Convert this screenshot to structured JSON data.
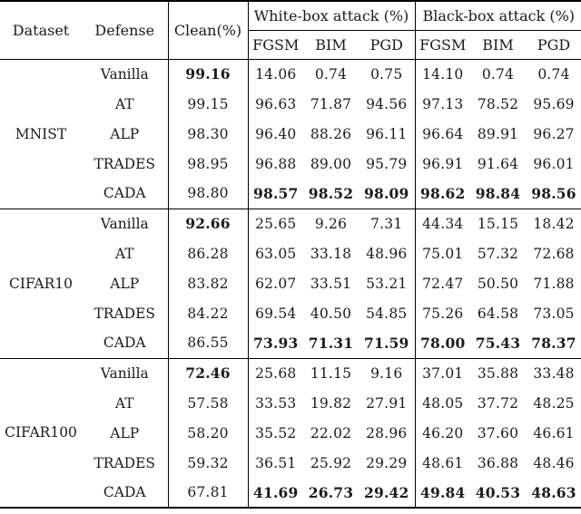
{
  "table": {
    "headers": {
      "dataset": "Dataset",
      "defense": "Defense",
      "clean": "Clean(%)",
      "whitebox": "White-box attack (%)",
      "blackbox": "Black-box attack (%)",
      "attack_cols": [
        "FGSM",
        "BIM",
        "PGD"
      ]
    },
    "groups": [
      {
        "dataset": "MNIST",
        "rows": [
          {
            "defense": "Vanilla",
            "clean": "99.16",
            "clean_bold": true,
            "attack_bold": false,
            "wb": [
              "14.06",
              "0.74",
              "0.75"
            ],
            "bb": [
              "14.10",
              "0.74",
              "0.74"
            ]
          },
          {
            "defense": "AT",
            "clean": "99.15",
            "clean_bold": false,
            "attack_bold": false,
            "wb": [
              "96.63",
              "71.87",
              "94.56"
            ],
            "bb": [
              "97.13",
              "78.52",
              "95.69"
            ]
          },
          {
            "defense": "ALP",
            "clean": "98.30",
            "clean_bold": false,
            "attack_bold": false,
            "wb": [
              "96.40",
              "88.26",
              "96.11"
            ],
            "bb": [
              "96.64",
              "89.91",
              "96.27"
            ]
          },
          {
            "defense": "TRADES",
            "clean": "98.95",
            "clean_bold": false,
            "attack_bold": false,
            "wb": [
              "96.88",
              "89.00",
              "95.79"
            ],
            "bb": [
              "96.91",
              "91.64",
              "96.01"
            ]
          },
          {
            "defense": "CADA",
            "clean": "98.80",
            "clean_bold": false,
            "attack_bold": true,
            "wb": [
              "98.57",
              "98.52",
              "98.09"
            ],
            "bb": [
              "98.62",
              "98.84",
              "98.56"
            ]
          }
        ]
      },
      {
        "dataset": "CIFAR10",
        "rows": [
          {
            "defense": "Vanilla",
            "clean": "92.66",
            "clean_bold": true,
            "attack_bold": false,
            "wb": [
              "25.65",
              "9.26",
              "7.31"
            ],
            "bb": [
              "44.34",
              "15.15",
              "18.42"
            ]
          },
          {
            "defense": "AT",
            "clean": "86.28",
            "clean_bold": false,
            "attack_bold": false,
            "wb": [
              "63.05",
              "33.18",
              "48.96"
            ],
            "bb": [
              "75.01",
              "57.32",
              "72.68"
            ]
          },
          {
            "defense": "ALP",
            "clean": "83.82",
            "clean_bold": false,
            "attack_bold": false,
            "wb": [
              "62.07",
              "33.51",
              "53.21"
            ],
            "bb": [
              "72.47",
              "50.50",
              "71.88"
            ]
          },
          {
            "defense": "TRADES",
            "clean": "84.22",
            "clean_bold": false,
            "attack_bold": false,
            "wb": [
              "69.54",
              "40.50",
              "54.85"
            ],
            "bb": [
              "75.26",
              "64.58",
              "73.05"
            ]
          },
          {
            "defense": "CADA",
            "clean": "86.55",
            "clean_bold": false,
            "attack_bold": true,
            "wb": [
              "73.93",
              "71.31",
              "71.59"
            ],
            "bb": [
              "78.00",
              "75.43",
              "78.37"
            ]
          }
        ]
      },
      {
        "dataset": "CIFAR100",
        "rows": [
          {
            "defense": "Vanilla",
            "clean": "72.46",
            "clean_bold": true,
            "attack_bold": false,
            "wb": [
              "25.68",
              "11.15",
              "9.16"
            ],
            "bb": [
              "37.01",
              "35.88",
              "33.48"
            ]
          },
          {
            "defense": "AT",
            "clean": "57.58",
            "clean_bold": false,
            "attack_bold": false,
            "wb": [
              "33.53",
              "19.82",
              "27.91"
            ],
            "bb": [
              "48.05",
              "37.72",
              "48.25"
            ]
          },
          {
            "defense": "ALP",
            "clean": "58.20",
            "clean_bold": false,
            "attack_bold": false,
            "wb": [
              "35.52",
              "22.02",
              "28.96"
            ],
            "bb": [
              "46.20",
              "37.60",
              "46.61"
            ]
          },
          {
            "defense": "TRADES",
            "clean": "59.32",
            "clean_bold": false,
            "attack_bold": false,
            "wb": [
              "36.51",
              "25.92",
              "29.29"
            ],
            "bb": [
              "48.61",
              "36.88",
              "48.46"
            ]
          },
          {
            "defense": "CADA",
            "clean": "67.81",
            "clean_bold": false,
            "attack_bold": true,
            "wb": [
              "41.69",
              "26.73",
              "29.42"
            ],
            "bb": [
              "49.84",
              "40.53",
              "48.63"
            ]
          }
        ]
      }
    ]
  }
}
